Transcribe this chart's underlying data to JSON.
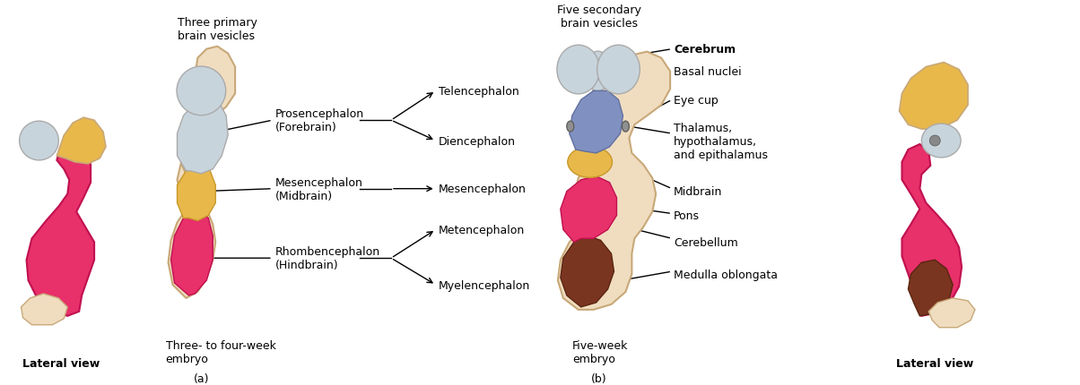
{
  "title": "Brain Vesicles Diagram",
  "bg_color": "#ffffff",
  "figsize": [
    12.04,
    4.31
  ],
  "dpi": 100,
  "colors": {
    "light_gray": "#c8d4dc",
    "yellow": "#e8b84b",
    "dark_yellow": "#c89828",
    "pink_magenta": "#e8306a",
    "dark_pink": "#c01050",
    "brown": "#7a3520",
    "cream": "#f0ddc0",
    "outline": "#c8a878",
    "purple_blue": "#8090c0",
    "text_color": "#000000",
    "eye_gray": "#909090",
    "aaaaaa": "#aaaaaa"
  },
  "labels": {
    "lateral_view_left": "Lateral view",
    "lateral_view_right": "Lateral view",
    "three_primary": "Three primary\nbrain vesicles",
    "five_secondary": "Five secondary\nbrain vesicles",
    "embryo_a": "Three- to four-week\nembryo",
    "embryo_b": "Five-week\nembryo",
    "label_a": "(a)",
    "label_b": "(b)",
    "prosencephalon": "Prosencephalon\n(Forebrain)",
    "mesencephalon_a": "Mesencephalon\n(Midbrain)",
    "rhombencephalon": "Rhombencephalon\n(Hindbrain)",
    "telencephalon": "Telencephalon",
    "diencephalon": "Diencephalon",
    "mesencephalon_b": "Mesencephalon",
    "metencephalon": "Metencephalon",
    "myelencephalon": "Myelencephalon",
    "cerebrum": "Cerebrum",
    "basal_nuclei": "Basal nuclei",
    "eye_cup": "Eye cup",
    "thalamus": "Thalamus,\nhypothalamus,\nand epithalamus",
    "midbrain": "Midbrain",
    "pons": "Pons",
    "cerebellum": "Cerebellum",
    "medulla": "Medulla oblongata"
  }
}
